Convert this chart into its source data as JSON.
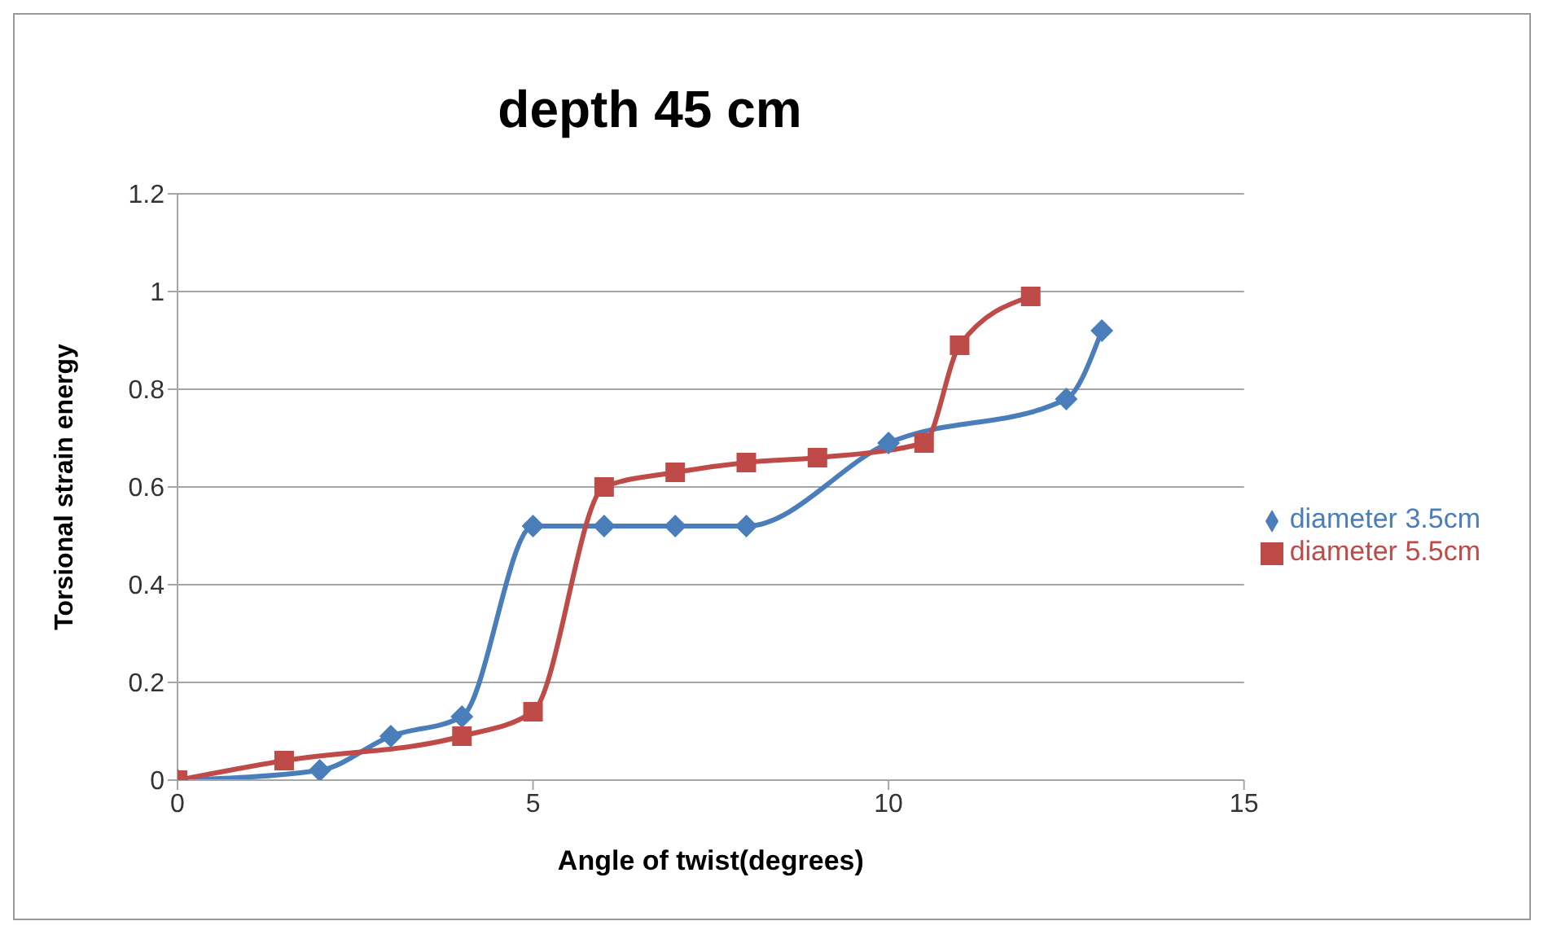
{
  "chart_data": {
    "type": "line",
    "title": "depth 45 cm",
    "xlabel": "Angle of twist(degrees)",
    "ylabel": "Torsional strain energy",
    "xlim": [
      0,
      15
    ],
    "xticks": [
      0,
      5,
      10,
      15
    ],
    "ylim": [
      0,
      1.2
    ],
    "yticks": [
      0,
      0.2,
      0.4,
      0.6,
      0.8,
      1,
      1.2
    ],
    "grid": "y",
    "legend": "right",
    "series": [
      {
        "name": "diameter 3.5cm",
        "color": "#4a7ebb",
        "marker": "diamond",
        "x": [
          0,
          2,
          3,
          4,
          5,
          6,
          7,
          8,
          10,
          12.5,
          13
        ],
        "values": [
          0,
          0.02,
          0.09,
          0.13,
          0.52,
          0.52,
          0.52,
          0.52,
          0.69,
          0.78,
          0.92
        ]
      },
      {
        "name": "diameter 5.5cm",
        "color": "#be4b48",
        "marker": "square",
        "x": [
          0,
          1.5,
          4,
          5,
          6,
          7,
          8,
          9,
          10.5,
          11,
          12
        ],
        "values": [
          0,
          0.04,
          0.09,
          0.14,
          0.6,
          0.63,
          0.65,
          0.66,
          0.69,
          0.89,
          0.99
        ]
      }
    ]
  }
}
